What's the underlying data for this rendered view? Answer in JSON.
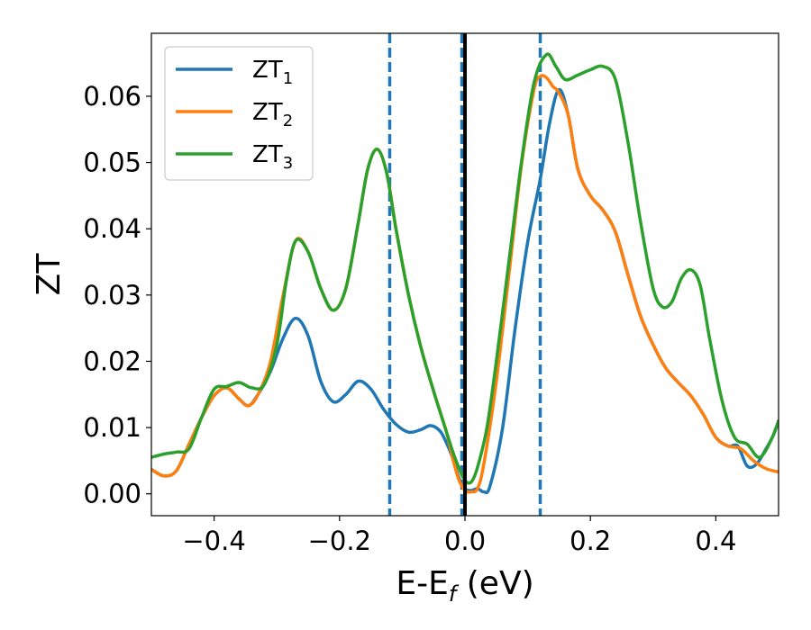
{
  "chart_data": {
    "type": "line",
    "xlabel": "E-E",
    "xlabel_sub": "f",
    "xlabel_unit": " (eV)",
    "ylabel": "ZT",
    "xlim": [
      -0.5,
      0.5
    ],
    "ylim": [
      -0.0033,
      0.0695
    ],
    "xticks": [
      -0.4,
      -0.2,
      0.0,
      0.2,
      0.4
    ],
    "xtick_labels": [
      "−0.4",
      "−0.2",
      "0.0",
      "0.2",
      "0.4"
    ],
    "yticks": [
      0.0,
      0.01,
      0.02,
      0.03,
      0.04,
      0.05,
      0.06
    ],
    "ytick_labels": [
      "0.00",
      "0.01",
      "0.02",
      "0.03",
      "0.04",
      "0.05",
      "0.06"
    ],
    "grid": false,
    "legend_position": "top-left",
    "vlines": [
      {
        "x": -0.12,
        "style": "dashed",
        "color": "#1f77b4"
      },
      {
        "x": -0.005,
        "style": "dashed",
        "color": "#1f77b4"
      },
      {
        "x": 0.12,
        "style": "dashed",
        "color": "#1f77b4"
      },
      {
        "x": 0.0,
        "style": "solid",
        "color": "#000000"
      }
    ],
    "series": [
      {
        "name": "ZT",
        "name_sub": "1",
        "color": "#1f77b4",
        "points": [
          [
            -0.5,
            0.0037
          ],
          [
            -0.48,
            0.0027
          ],
          [
            -0.46,
            0.0035
          ],
          [
            -0.44,
            0.0075
          ],
          [
            -0.42,
            0.0115
          ],
          [
            -0.4,
            0.0148
          ],
          [
            -0.38,
            0.016
          ],
          [
            -0.36,
            0.0143
          ],
          [
            -0.345,
            0.0133
          ],
          [
            -0.33,
            0.015
          ],
          [
            -0.31,
            0.0185
          ],
          [
            -0.29,
            0.0235
          ],
          [
            -0.27,
            0.0265
          ],
          [
            -0.25,
            0.0238
          ],
          [
            -0.23,
            0.017
          ],
          [
            -0.21,
            0.0139
          ],
          [
            -0.19,
            0.015
          ],
          [
            -0.17,
            0.017
          ],
          [
            -0.15,
            0.0158
          ],
          [
            -0.13,
            0.0128
          ],
          [
            -0.11,
            0.0105
          ],
          [
            -0.09,
            0.0093
          ],
          [
            -0.07,
            0.0097
          ],
          [
            -0.055,
            0.0103
          ],
          [
            -0.04,
            0.0095
          ],
          [
            -0.03,
            0.0078
          ],
          [
            -0.02,
            0.0055
          ],
          [
            -0.01,
            0.0025
          ],
          [
            0.0,
            0.0008
          ],
          [
            0.01,
            0.0005
          ],
          [
            0.02,
            0.0008
          ],
          [
            0.03,
            0.0003
          ],
          [
            0.04,
            0.0012
          ],
          [
            0.06,
            0.01
          ],
          [
            0.08,
            0.025
          ],
          [
            0.1,
            0.038
          ],
          [
            0.12,
            0.0475
          ],
          [
            0.135,
            0.056
          ],
          [
            0.15,
            0.061
          ],
          [
            0.165,
            0.057
          ],
          [
            0.18,
            0.049
          ],
          [
            0.2,
            0.045
          ],
          [
            0.22,
            0.0428
          ],
          [
            0.24,
            0.0395
          ],
          [
            0.26,
            0.033
          ],
          [
            0.28,
            0.0268
          ],
          [
            0.3,
            0.0225
          ],
          [
            0.32,
            0.019
          ],
          [
            0.34,
            0.0168
          ],
          [
            0.36,
            0.0148
          ],
          [
            0.38,
            0.012
          ],
          [
            0.4,
            0.0085
          ],
          [
            0.42,
            0.0072
          ],
          [
            0.435,
            0.0072
          ],
          [
            0.45,
            0.0042
          ],
          [
            0.465,
            0.0045
          ],
          [
            0.48,
            0.0068
          ],
          [
            0.49,
            0.0085
          ],
          [
            0.5,
            0.011
          ]
        ]
      },
      {
        "name": "ZT",
        "name_sub": "2",
        "color": "#ff7f0e",
        "points": [
          [
            -0.5,
            0.0037
          ],
          [
            -0.48,
            0.0027
          ],
          [
            -0.46,
            0.0035
          ],
          [
            -0.44,
            0.0075
          ],
          [
            -0.42,
            0.0115
          ],
          [
            -0.4,
            0.0148
          ],
          [
            -0.38,
            0.016
          ],
          [
            -0.36,
            0.0143
          ],
          [
            -0.345,
            0.0133
          ],
          [
            -0.33,
            0.015
          ],
          [
            -0.31,
            0.02
          ],
          [
            -0.29,
            0.03
          ],
          [
            -0.27,
            0.0382
          ],
          [
            -0.25,
            0.0365
          ],
          [
            -0.23,
            0.031
          ],
          [
            -0.21,
            0.0277
          ],
          [
            -0.19,
            0.031
          ],
          [
            -0.17,
            0.041
          ],
          [
            -0.155,
            0.049
          ],
          [
            -0.14,
            0.052
          ],
          [
            -0.125,
            0.0485
          ],
          [
            -0.11,
            0.04
          ],
          [
            -0.09,
            0.03
          ],
          [
            -0.07,
            0.022
          ],
          [
            -0.05,
            0.0155
          ],
          [
            -0.03,
            0.0095
          ],
          [
            -0.02,
            0.0055
          ],
          [
            -0.01,
            0.0022
          ],
          [
            0.0,
            0.0005
          ],
          [
            0.01,
            0.0003
          ],
          [
            0.02,
            0.0008
          ],
          [
            0.03,
            0.0045
          ],
          [
            0.05,
            0.017
          ],
          [
            0.07,
            0.033
          ],
          [
            0.09,
            0.0495
          ],
          [
            0.11,
            0.061
          ],
          [
            0.12,
            0.063
          ],
          [
            0.13,
            0.0628
          ],
          [
            0.14,
            0.0615
          ],
          [
            0.15,
            0.0605
          ],
          [
            0.165,
            0.057
          ],
          [
            0.18,
            0.049
          ],
          [
            0.2,
            0.045
          ],
          [
            0.22,
            0.0428
          ],
          [
            0.24,
            0.0395
          ],
          [
            0.26,
            0.033
          ],
          [
            0.28,
            0.0268
          ],
          [
            0.3,
            0.0225
          ],
          [
            0.32,
            0.019
          ],
          [
            0.34,
            0.0168
          ],
          [
            0.36,
            0.0148
          ],
          [
            0.38,
            0.012
          ],
          [
            0.4,
            0.0085
          ],
          [
            0.42,
            0.0072
          ],
          [
            0.44,
            0.0068
          ],
          [
            0.46,
            0.005
          ],
          [
            0.48,
            0.0038
          ],
          [
            0.5,
            0.0033
          ]
        ]
      },
      {
        "name": "ZT",
        "name_sub": "3",
        "color": "#2ca02c",
        "points": [
          [
            -0.5,
            0.0055
          ],
          [
            -0.48,
            0.006
          ],
          [
            -0.46,
            0.0063
          ],
          [
            -0.44,
            0.0068
          ],
          [
            -0.42,
            0.0115
          ],
          [
            -0.4,
            0.0158
          ],
          [
            -0.38,
            0.0162
          ],
          [
            -0.36,
            0.0168
          ],
          [
            -0.34,
            0.016
          ],
          [
            -0.32,
            0.0165
          ],
          [
            -0.3,
            0.0225
          ],
          [
            -0.285,
            0.032
          ],
          [
            -0.27,
            0.0382
          ],
          [
            -0.25,
            0.0365
          ],
          [
            -0.23,
            0.031
          ],
          [
            -0.21,
            0.0277
          ],
          [
            -0.19,
            0.031
          ],
          [
            -0.17,
            0.041
          ],
          [
            -0.155,
            0.049
          ],
          [
            -0.14,
            0.052
          ],
          [
            -0.125,
            0.0485
          ],
          [
            -0.11,
            0.04
          ],
          [
            -0.09,
            0.03
          ],
          [
            -0.07,
            0.022
          ],
          [
            -0.05,
            0.0155
          ],
          [
            -0.03,
            0.0095
          ],
          [
            -0.02,
            0.0065
          ],
          [
            -0.01,
            0.004
          ],
          [
            0.0,
            0.002
          ],
          [
            0.01,
            0.0018
          ],
          [
            0.02,
            0.004
          ],
          [
            0.035,
            0.01
          ],
          [
            0.05,
            0.02
          ],
          [
            0.07,
            0.035
          ],
          [
            0.09,
            0.05
          ],
          [
            0.11,
            0.062
          ],
          [
            0.13,
            0.0663
          ],
          [
            0.145,
            0.0645
          ],
          [
            0.16,
            0.0625
          ],
          [
            0.18,
            0.0632
          ],
          [
            0.2,
            0.064
          ],
          [
            0.22,
            0.0645
          ],
          [
            0.24,
            0.0625
          ],
          [
            0.26,
            0.053
          ],
          [
            0.28,
            0.041
          ],
          [
            0.3,
            0.031
          ],
          [
            0.315,
            0.0282
          ],
          [
            0.33,
            0.029
          ],
          [
            0.345,
            0.0325
          ],
          [
            0.36,
            0.0338
          ],
          [
            0.375,
            0.0315
          ],
          [
            0.39,
            0.0235
          ],
          [
            0.41,
            0.014
          ],
          [
            0.43,
            0.0085
          ],
          [
            0.45,
            0.0075
          ],
          [
            0.47,
            0.0055
          ],
          [
            0.49,
            0.0085
          ],
          [
            0.5,
            0.011
          ]
        ]
      }
    ]
  }
}
